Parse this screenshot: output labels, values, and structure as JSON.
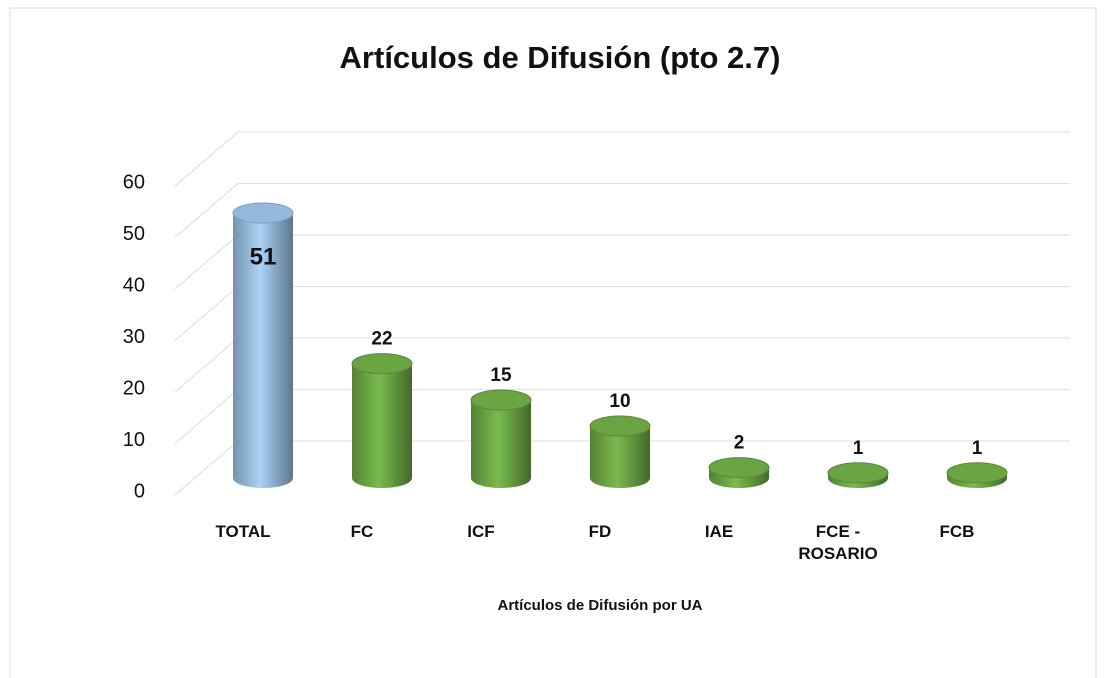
{
  "chart_data": {
    "type": "bar3d",
    "title": "Artículos de Difusión (pto 2.7)",
    "x_label": "Artículos de Difusión por UA",
    "categories": [
      "TOTAL",
      "FC",
      "ICF",
      "FD",
      "IAE",
      "FCE - ROSARIO",
      "FCB"
    ],
    "values": [
      51,
      22,
      15,
      10,
      2,
      1,
      1
    ],
    "colors": [
      "#9dc3e6",
      "#70ad47",
      "#70ad47",
      "#70ad47",
      "#70ad47",
      "#70ad47",
      "#70ad47"
    ],
    "ylim": [
      0,
      60
    ],
    "yticks": [
      0,
      10,
      20,
      30,
      40,
      50,
      60
    ],
    "grid": true
  }
}
